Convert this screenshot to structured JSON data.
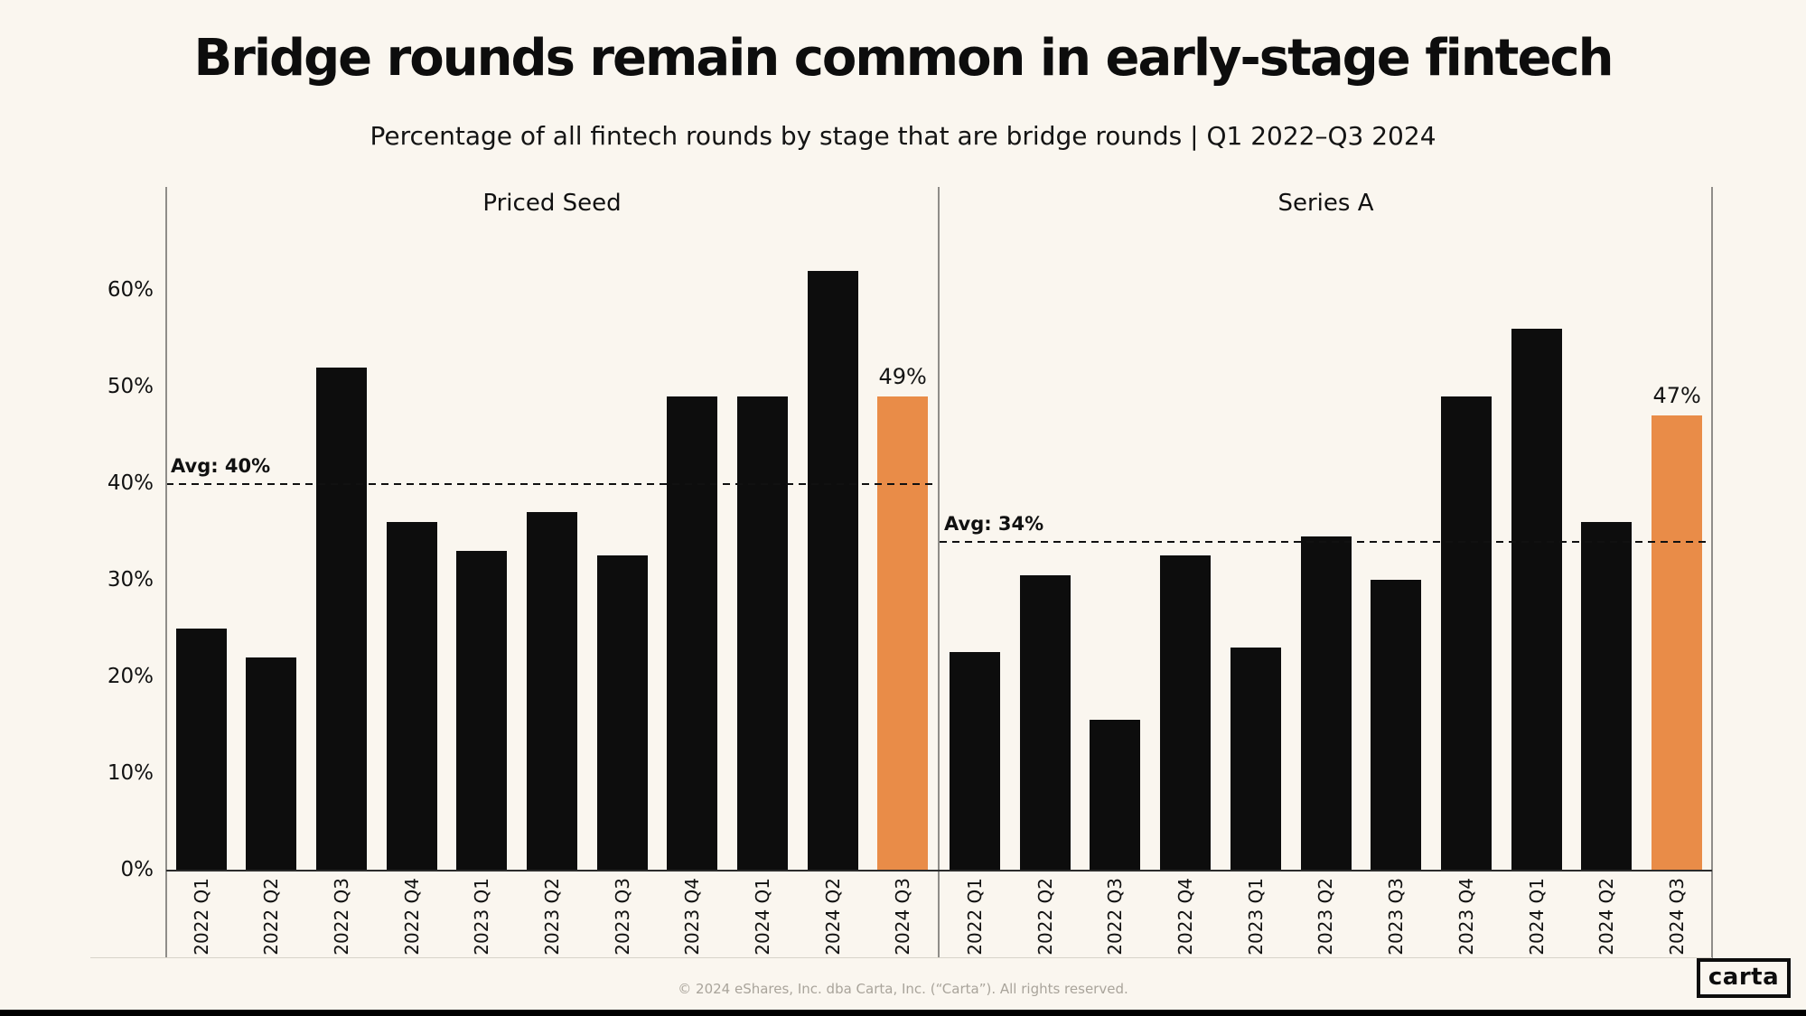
{
  "title": "Bridge rounds remain common in early-stage fintech",
  "subtitle": "Percentage of all fintech rounds by stage that are bridge rounds | Q1 2022–Q3 2024",
  "footer": {
    "copyright": "© 2024 eShares, Inc. dba Carta, Inc. (“Carta”). All rights reserved.",
    "logo_text": "carta"
  },
  "colors": {
    "background": "#FAF6EF",
    "bar": "#0d0d0d",
    "highlight": "#E98C48",
    "axis_line": "#2b2b2b",
    "spine": "#8f8d89",
    "text": "#111111",
    "footer_text": "#a9a49b"
  },
  "chart_data": {
    "type": "bar",
    "categories": [
      "2022 Q1",
      "2022 Q2",
      "2022 Q3",
      "2022 Q4",
      "2023 Q1",
      "2023 Q2",
      "2023 Q3",
      "2023 Q4",
      "2024 Q1",
      "2024 Q2",
      "2024 Q3"
    ],
    "y_ticks": [
      {
        "label": "0%",
        "value": 0
      },
      {
        "label": "10%",
        "value": 10
      },
      {
        "label": "20%",
        "value": 20
      },
      {
        "label": "30%",
        "value": 30
      },
      {
        "label": "40%",
        "value": 40
      },
      {
        "label": "50%",
        "value": 50
      },
      {
        "label": "60%",
        "value": 60
      }
    ],
    "ylim": [
      0,
      70.4
    ],
    "grid": false,
    "legend": false,
    "panels": [
      {
        "title": "Priced Seed",
        "values": [
          25,
          22,
          52,
          36,
          33,
          37,
          32.5,
          49,
          49,
          62,
          49
        ],
        "avg_value": 40,
        "avg_label": "Avg: 40%",
        "highlight_index": 10,
        "highlight_label": "49%"
      },
      {
        "title": "Series A",
        "values": [
          22.5,
          30.5,
          15.5,
          32.5,
          23,
          34.5,
          30,
          49,
          56,
          36,
          47
        ],
        "avg_value": 34,
        "avg_label": "Avg: 34%",
        "highlight_index": 10,
        "highlight_label": "47%"
      }
    ]
  }
}
